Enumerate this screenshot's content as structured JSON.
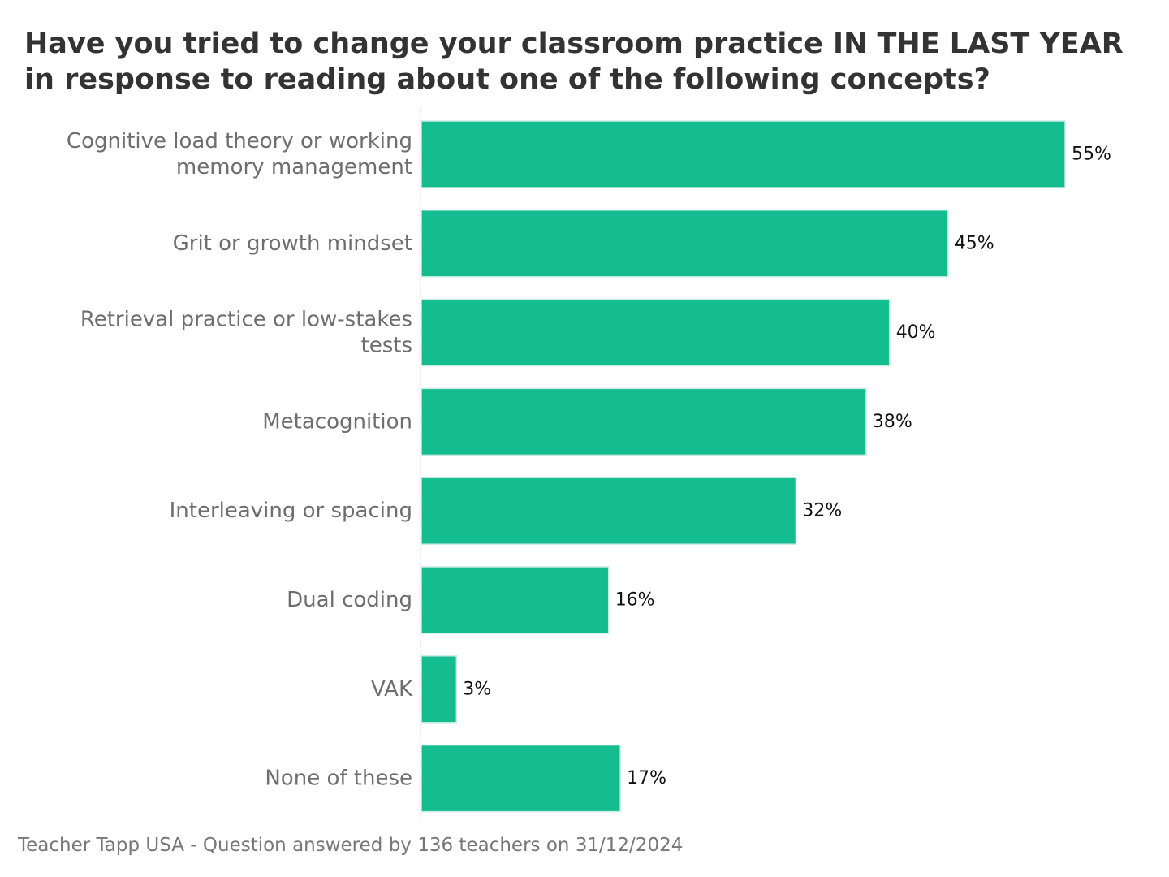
{
  "title": "Have you tried to change your classroom practice IN THE LAST YEAR in response to reading about one of the following concepts?",
  "footer": "Teacher Tapp USA - Question answered by 136 teachers on 31/12/2024",
  "colors": {
    "bar": "#13bd8f",
    "bar_edge": "#c8ece2",
    "label_text": "#6e6e6e",
    "value_text": "#111111",
    "title_text": "#333333"
  },
  "chart_data": {
    "type": "bar",
    "orientation": "horizontal",
    "categories": [
      [
        "Cognitive load theory or working",
        "memory management"
      ],
      [
        "Grit or growth mindset"
      ],
      [
        "Retrieval practice or low-stakes",
        "tests"
      ],
      [
        "Metacognition"
      ],
      [
        "Interleaving or spacing"
      ],
      [
        "Dual coding"
      ],
      [
        "VAK"
      ],
      [
        "None of these"
      ]
    ],
    "values": [
      55,
      45,
      40,
      38,
      32,
      16,
      3,
      17
    ],
    "value_labels": [
      "55%",
      "45%",
      "40%",
      "38%",
      "32%",
      "16%",
      "3%",
      "17%"
    ],
    "xlim": [
      0,
      55
    ],
    "grid": false,
    "legend": "none"
  }
}
